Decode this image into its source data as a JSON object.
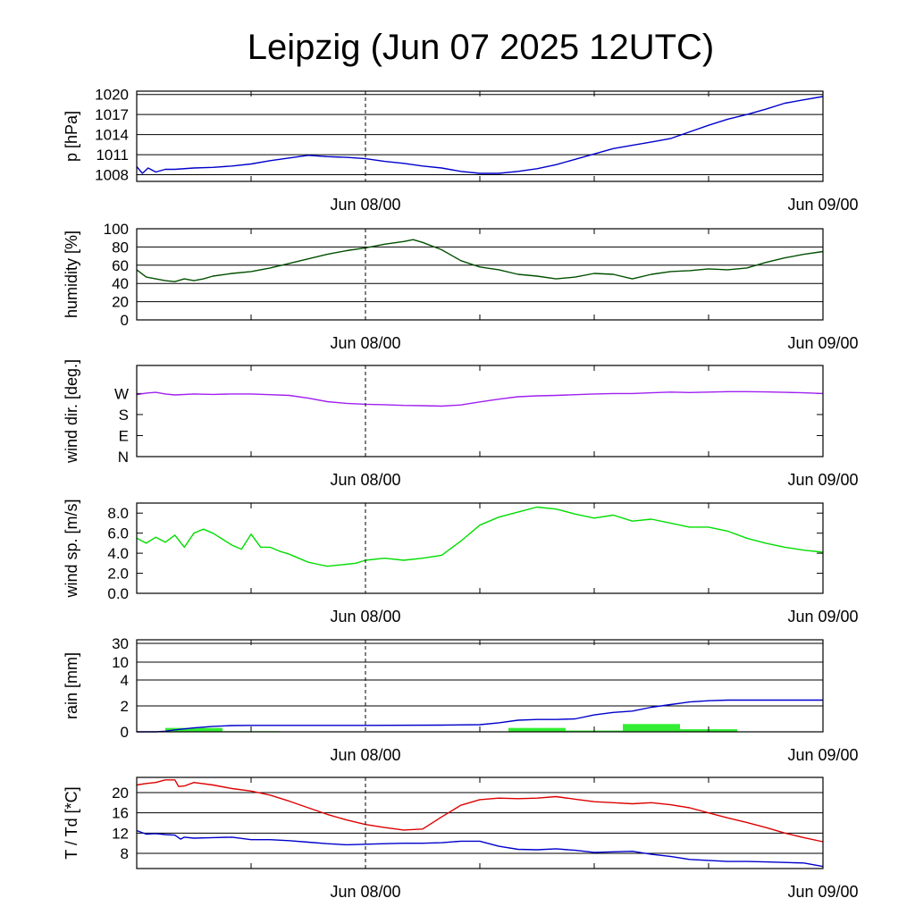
{
  "title": "Leipzig (Jun 07 2025 12UTC)",
  "colors": {
    "pressure": "#0000cc",
    "humidity": "#005000",
    "wind_dir": "#a020f0",
    "wind_speed": "#00dd00",
    "rain_bar": "#33ee33",
    "rain_total": "#0000cc",
    "temperature": "#dd0000",
    "dewpoint": "#0000cc"
  },
  "chart_data": [
    {
      "type": "line",
      "id": "pressure",
      "ylabel": "p [hPa]",
      "xlim": [
        0,
        36
      ],
      "x_ticks": [
        {
          "x": 12,
          "label": "Jun 08/00"
        },
        {
          "x": 36,
          "label": "Jun 09/00"
        }
      ],
      "ylim": [
        1007,
        1020.5
      ],
      "y_ticks": [
        1020,
        1017,
        1014,
        1011,
        1008
      ],
      "grid": true,
      "series": [
        {
          "key": "pressure",
          "x": [
            0,
            0.3,
            0.6,
            1,
            1.5,
            2,
            3,
            4,
            5,
            6,
            7,
            8,
            9,
            10,
            11,
            12,
            13,
            14,
            15,
            16,
            17,
            18,
            19,
            20,
            21,
            22,
            23,
            24,
            25,
            26,
            27,
            28,
            29,
            30,
            31,
            32,
            33,
            34,
            35,
            36
          ],
          "y": [
            1009.2,
            1008.2,
            1009.0,
            1008.4,
            1008.8,
            1008.8,
            1009.0,
            1009.1,
            1009.3,
            1009.6,
            1010.1,
            1010.5,
            1010.9,
            1010.7,
            1010.6,
            1010.4,
            1010.0,
            1009.7,
            1009.3,
            1009.0,
            1008.5,
            1008.2,
            1008.2,
            1008.5,
            1008.9,
            1009.5,
            1010.3,
            1011.1,
            1011.9,
            1012.4,
            1012.9,
            1013.4,
            1014.4,
            1015.4,
            1016.3,
            1017.0,
            1017.8,
            1018.7,
            1019.2,
            1019.7
          ]
        }
      ]
    },
    {
      "type": "line",
      "id": "humidity",
      "ylabel": "humidity [%]",
      "xlim": [
        0,
        36
      ],
      "x_ticks": [
        {
          "x": 12,
          "label": "Jun 08/00"
        },
        {
          "x": 36,
          "label": "Jun 09/00"
        }
      ],
      "ylim": [
        0,
        100
      ],
      "y_ticks": [
        100,
        80,
        60,
        40,
        20,
        0
      ],
      "grid": true,
      "series": [
        {
          "key": "humidity",
          "x": [
            0,
            0.5,
            1,
            1.5,
            2,
            2.5,
            3,
            3.5,
            4,
            5,
            6,
            7,
            8,
            9,
            10,
            11,
            12,
            13,
            14,
            14.5,
            15,
            16,
            17,
            18,
            19,
            20,
            21,
            22,
            23,
            24,
            25,
            26,
            27,
            28,
            29,
            30,
            31,
            32,
            33,
            34,
            35,
            36
          ],
          "y": [
            55,
            47,
            45,
            43,
            42,
            45,
            43,
            45,
            48,
            51,
            53,
            57,
            62,
            67,
            72,
            76,
            79,
            83,
            86,
            88,
            85,
            77,
            65,
            58,
            55,
            50,
            48,
            45,
            47,
            51,
            50,
            45,
            50,
            53,
            54,
            56,
            55,
            57,
            63,
            68,
            72,
            75
          ]
        }
      ]
    },
    {
      "type": "line",
      "id": "wind_dir",
      "ylabel": "wind dir. [deg.]",
      "xlim": [
        0,
        36
      ],
      "x_ticks": [
        {
          "x": 12,
          "label": "Jun 08/00"
        },
        {
          "x": 36,
          "label": "Jun 09/00"
        }
      ],
      "ylim": [
        0,
        390
      ],
      "y_ticks": [
        {
          "v": 0,
          "label": "N"
        },
        {
          "v": 90,
          "label": "E"
        },
        {
          "v": 180,
          "label": "S"
        },
        {
          "v": 270,
          "label": "W"
        }
      ],
      "grid": false,
      "series": [
        {
          "key": "wind_dir",
          "x": [
            0,
            0.5,
            1,
            1.5,
            2,
            3,
            4,
            5,
            6,
            7,
            8,
            9,
            10,
            11,
            12,
            13,
            14,
            15,
            16,
            17,
            18,
            19,
            20,
            21,
            22,
            23,
            24,
            25,
            26,
            27,
            28,
            29,
            30,
            31,
            32,
            33,
            34,
            35,
            36
          ],
          "y": [
            265,
            272,
            275,
            268,
            264,
            268,
            266,
            268,
            268,
            265,
            262,
            250,
            235,
            228,
            224,
            222,
            219,
            218,
            216,
            221,
            234,
            246,
            256,
            260,
            262,
            265,
            268,
            270,
            270,
            273,
            276,
            274,
            276,
            278,
            278,
            277,
            275,
            273,
            270
          ]
        }
      ]
    },
    {
      "type": "line",
      "id": "wind_speed",
      "ylabel": "wind sp. [m/s]",
      "xlim": [
        0,
        36
      ],
      "x_ticks": [
        {
          "x": 12,
          "label": "Jun 08/00"
        },
        {
          "x": 36,
          "label": "Jun 09/00"
        }
      ],
      "ylim": [
        0,
        9
      ],
      "y_ticks": [
        {
          "v": 0,
          "label": "0.0"
        },
        {
          "v": 2,
          "label": "2.0"
        },
        {
          "v": 4,
          "label": "4.0"
        },
        {
          "v": 6,
          "label": "6.0"
        },
        {
          "v": 8,
          "label": "8.0"
        }
      ],
      "grid": false,
      "series": [
        {
          "key": "wind_speed",
          "x": [
            0,
            0.5,
            1,
            1.5,
            2,
            2.5,
            3,
            3.5,
            4,
            4.5,
            5,
            5.5,
            6,
            6.5,
            7,
            7.5,
            8,
            8.5,
            9,
            9.5,
            10,
            10.5,
            11,
            11.5,
            12,
            13,
            14,
            15,
            16,
            17,
            18,
            19,
            20,
            21,
            22,
            23,
            24,
            25,
            26,
            27,
            28,
            29,
            30,
            31,
            32,
            33,
            34,
            35,
            36
          ],
          "y": [
            5.5,
            5.0,
            5.6,
            5.1,
            5.8,
            4.6,
            6.0,
            6.4,
            6.0,
            5.4,
            4.8,
            4.4,
            5.9,
            4.6,
            4.6,
            4.2,
            3.9,
            3.5,
            3.1,
            2.9,
            2.7,
            2.8,
            2.9,
            3.0,
            3.3,
            3.5,
            3.3,
            3.5,
            3.8,
            5.2,
            6.8,
            7.6,
            8.1,
            8.6,
            8.4,
            7.9,
            7.5,
            7.8,
            7.2,
            7.4,
            7.0,
            6.6,
            6.6,
            6.2,
            5.5,
            5.0,
            4.6,
            4.3,
            4.1
          ]
        }
      ]
    },
    {
      "type": "bar+line",
      "id": "rain",
      "ylabel": "rain [mm]",
      "xlim": [
        0,
        36
      ],
      "x_ticks": [
        {
          "x": 12,
          "label": "Jun 08/00"
        },
        {
          "x": 36,
          "label": "Jun 09/00"
        }
      ],
      "y_scale": "nonlinear",
      "y_ticks": [
        0,
        2,
        4,
        10,
        30
      ],
      "grid": true,
      "bars": [
        {
          "x0": 1.5,
          "x1": 4.5,
          "value": 0.3
        },
        {
          "x0": 4.5,
          "x1": 7.5,
          "value": 0.05
        },
        {
          "x0": 19.5,
          "x1": 22.5,
          "value": 0.3
        },
        {
          "x0": 22.5,
          "x1": 25.5,
          "value": 0.1
        },
        {
          "x0": 25.5,
          "x1": 28.5,
          "value": 0.6
        },
        {
          "x0": 28.5,
          "x1": 31.5,
          "value": 0.2
        }
      ],
      "series": [
        {
          "key": "rain_total",
          "x": [
            0,
            1,
            1.5,
            2,
            3,
            4,
            5,
            6,
            8,
            12,
            16,
            18,
            19,
            20,
            21,
            22,
            23,
            24,
            25,
            26,
            27,
            28,
            29,
            30,
            31,
            32,
            36
          ],
          "y": [
            0,
            0,
            0.05,
            0.15,
            0.3,
            0.42,
            0.48,
            0.5,
            0.5,
            0.5,
            0.52,
            0.55,
            0.7,
            0.9,
            0.95,
            0.95,
            1.0,
            1.3,
            1.5,
            1.6,
            1.9,
            2.1,
            2.3,
            2.4,
            2.45,
            2.45,
            2.45
          ]
        }
      ]
    },
    {
      "type": "line",
      "id": "temperature",
      "ylabel": "T / Td [*C]",
      "xlim": [
        0,
        36
      ],
      "x_ticks": [
        {
          "x": 12,
          "label": "Jun 08/00"
        },
        {
          "x": 36,
          "label": "Jun 09/00"
        }
      ],
      "ylim": [
        5,
        23
      ],
      "y_ticks": [
        20,
        16,
        12,
        8
      ],
      "grid": true,
      "series": [
        {
          "key": "temperature",
          "x": [
            0,
            0.5,
            1,
            1.5,
            2,
            2.2,
            2.5,
            3,
            4,
            5,
            6,
            7,
            8,
            9,
            10,
            11,
            12,
            13,
            14,
            15,
            16,
            17,
            18,
            19,
            20,
            21,
            22,
            23,
            24,
            25,
            26,
            27,
            28,
            29,
            30,
            31,
            32,
            33,
            34,
            35,
            36
          ],
          "y": [
            21.5,
            21.8,
            22.0,
            22.5,
            22.5,
            21.2,
            21.3,
            22.0,
            21.5,
            20.8,
            20.3,
            19.5,
            18.3,
            17.0,
            15.7,
            14.6,
            13.7,
            13.1,
            12.6,
            12.8,
            15.2,
            17.5,
            18.6,
            18.9,
            18.8,
            18.9,
            19.2,
            18.7,
            18.2,
            18.0,
            17.8,
            18.0,
            17.6,
            17.0,
            16.0,
            15.0,
            14.1,
            13.1,
            12.0,
            11.1,
            10.3
          ]
        },
        {
          "key": "dewpoint",
          "x": [
            0,
            0.5,
            1,
            1.5,
            2,
            2.3,
            2.5,
            3,
            4,
            5,
            6,
            7,
            8,
            9,
            10,
            11,
            12,
            13,
            14,
            15,
            16,
            17,
            18,
            19,
            20,
            21,
            22,
            23,
            24,
            25,
            26,
            27,
            28,
            29,
            30,
            31,
            32,
            33,
            34,
            35,
            36
          ],
          "y": [
            12.5,
            11.8,
            11.9,
            11.7,
            11.6,
            10.8,
            11.2,
            11.0,
            11.1,
            11.2,
            10.7,
            10.7,
            10.5,
            10.2,
            9.9,
            9.7,
            9.8,
            9.9,
            10.0,
            10.0,
            10.1,
            10.4,
            10.4,
            9.4,
            8.8,
            8.7,
            8.9,
            8.6,
            8.2,
            8.3,
            8.4,
            7.8,
            7.4,
            6.8,
            6.6,
            6.4,
            6.4,
            6.3,
            6.2,
            6.1,
            5.4
          ]
        }
      ]
    }
  ]
}
